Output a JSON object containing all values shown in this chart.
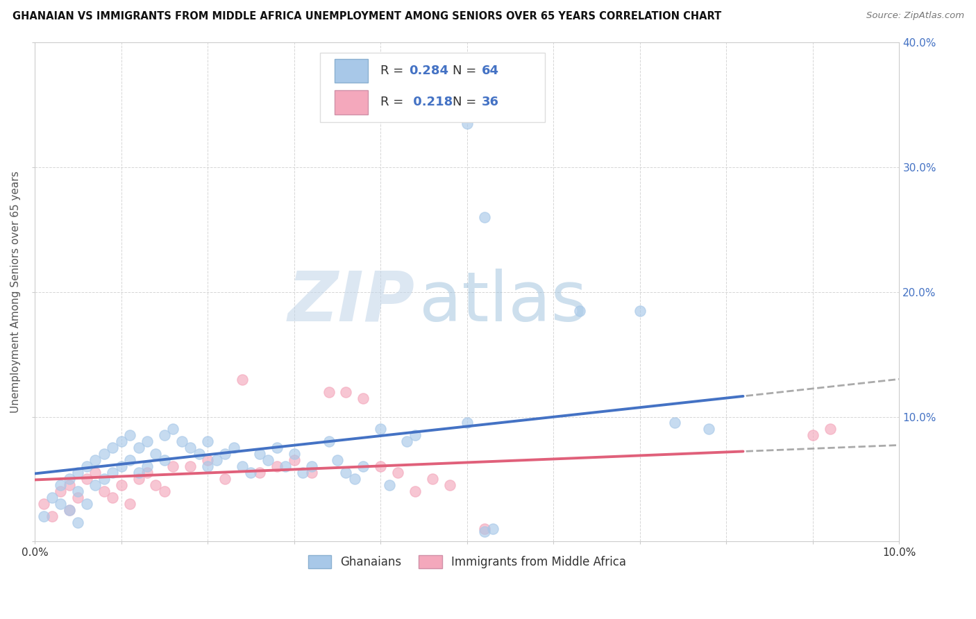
{
  "title": "GHANAIAN VS IMMIGRANTS FROM MIDDLE AFRICA UNEMPLOYMENT AMONG SENIORS OVER 65 YEARS CORRELATION CHART",
  "source": "Source: ZipAtlas.com",
  "ylabel": "Unemployment Among Seniors over 65 years",
  "xlim": [
    0.0,
    0.1
  ],
  "ylim": [
    0.0,
    0.4
  ],
  "xticks": [
    0.0,
    0.01,
    0.02,
    0.03,
    0.04,
    0.05,
    0.06,
    0.07,
    0.08,
    0.09,
    0.1
  ],
  "yticks": [
    0.0,
    0.1,
    0.2,
    0.3,
    0.4
  ],
  "blue_color": "#A8C8E8",
  "pink_color": "#F4A8BC",
  "trend_blue": "#4472C4",
  "trend_pink": "#E0607A",
  "trend_gray": "#AAAAAA",
  "R_blue": 0.284,
  "N_blue": 64,
  "R_pink": 0.218,
  "N_pink": 36,
  "legend_labels": [
    "Ghanaians",
    "Immigrants from Middle Africa"
  ],
  "watermark_zip": "ZIP",
  "watermark_atlas": "atlas",
  "background_color": "#FFFFFF",
  "blue_scatter_x": [
    0.001,
    0.002,
    0.003,
    0.003,
    0.004,
    0.004,
    0.005,
    0.005,
    0.005,
    0.006,
    0.006,
    0.007,
    0.007,
    0.008,
    0.008,
    0.009,
    0.009,
    0.01,
    0.01,
    0.011,
    0.011,
    0.012,
    0.012,
    0.013,
    0.013,
    0.014,
    0.015,
    0.015,
    0.016,
    0.017,
    0.018,
    0.019,
    0.02,
    0.02,
    0.021,
    0.022,
    0.023,
    0.024,
    0.025,
    0.026,
    0.027,
    0.028,
    0.029,
    0.03,
    0.031,
    0.032,
    0.034,
    0.035,
    0.036,
    0.037,
    0.038,
    0.04,
    0.041,
    0.043,
    0.044,
    0.05,
    0.052,
    0.053,
    0.063,
    0.07,
    0.074,
    0.078,
    0.05,
    0.052
  ],
  "blue_scatter_y": [
    0.02,
    0.035,
    0.045,
    0.03,
    0.05,
    0.025,
    0.055,
    0.04,
    0.015,
    0.06,
    0.03,
    0.065,
    0.045,
    0.07,
    0.05,
    0.075,
    0.055,
    0.08,
    0.06,
    0.085,
    0.065,
    0.075,
    0.055,
    0.08,
    0.06,
    0.07,
    0.085,
    0.065,
    0.09,
    0.08,
    0.075,
    0.07,
    0.08,
    0.06,
    0.065,
    0.07,
    0.075,
    0.06,
    0.055,
    0.07,
    0.065,
    0.075,
    0.06,
    0.07,
    0.055,
    0.06,
    0.08,
    0.065,
    0.055,
    0.05,
    0.06,
    0.09,
    0.045,
    0.08,
    0.085,
    0.095,
    0.26,
    0.01,
    0.185,
    0.185,
    0.095,
    0.09,
    0.335,
    0.008
  ],
  "pink_scatter_x": [
    0.001,
    0.002,
    0.003,
    0.004,
    0.004,
    0.005,
    0.006,
    0.007,
    0.008,
    0.009,
    0.01,
    0.011,
    0.012,
    0.013,
    0.014,
    0.015,
    0.016,
    0.018,
    0.02,
    0.022,
    0.024,
    0.026,
    0.028,
    0.03,
    0.032,
    0.034,
    0.036,
    0.038,
    0.04,
    0.042,
    0.044,
    0.046,
    0.048,
    0.052,
    0.09,
    0.092
  ],
  "pink_scatter_y": [
    0.03,
    0.02,
    0.04,
    0.045,
    0.025,
    0.035,
    0.05,
    0.055,
    0.04,
    0.035,
    0.045,
    0.03,
    0.05,
    0.055,
    0.045,
    0.04,
    0.06,
    0.06,
    0.065,
    0.05,
    0.13,
    0.055,
    0.06,
    0.065,
    0.055,
    0.12,
    0.12,
    0.115,
    0.06,
    0.055,
    0.04,
    0.05,
    0.045,
    0.01,
    0.085,
    0.09
  ]
}
